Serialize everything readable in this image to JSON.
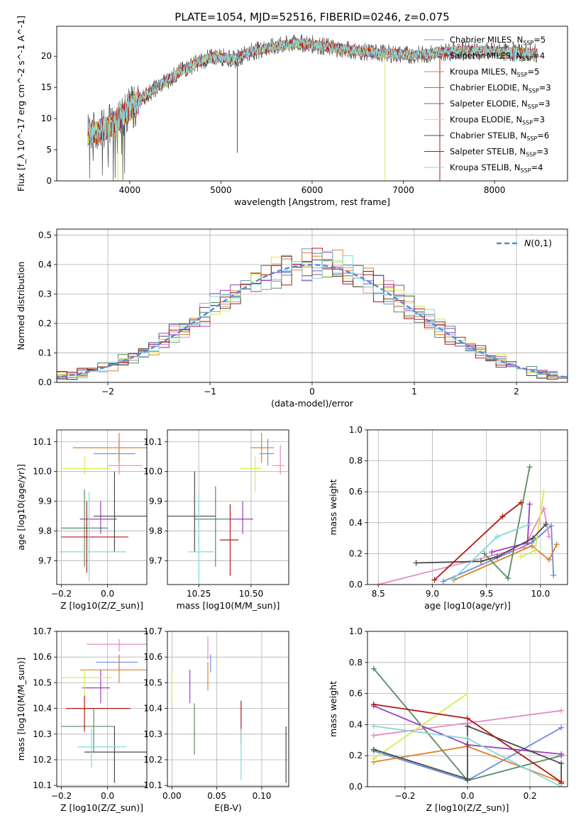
{
  "figure_title": "PLATE=1054, MJD=52516, FIBERID=0246, z=0.075",
  "colors": {
    "chabrier_miles": "#6a8fd8",
    "salpeter_miles": "#e48bc1",
    "kroupa_miles": "#e0802a",
    "chabrier_elodie": "#5a8a64",
    "salpeter_elodie": "#9b3fbf",
    "kroupa_elodie": "#d8ea52",
    "chabrier_stelib": "#4a4a4a",
    "salpeter_stelib": "#b01818",
    "kroupa_stelib": "#82d8dc",
    "normal_curve": "#5b8bd0"
  },
  "chart_data": [
    {
      "id": "spectrum",
      "type": "line",
      "title": "PLATE=1054, MJD=52516, FIBERID=0246, z=0.075",
      "xlabel": "wavelength [Angstrom, rest frame]",
      "ylabel": "Flux [f_λ 10^-17 erg cm^-2 s^-1 A^-1]",
      "xlim": [
        3200,
        8800
      ],
      "ylim": [
        0,
        24.8
      ],
      "xticks": [
        4000,
        5000,
        6000,
        7000,
        8000
      ],
      "yticks": [
        0,
        5,
        10,
        15,
        20
      ],
      "grid": false,
      "legend_position": "top-right",
      "x": [
        3550,
        3650,
        3750,
        3850,
        3950,
        4050,
        4150,
        4250,
        4350,
        4450,
        4550,
        4650,
        4750,
        4850,
        4950,
        5050,
        5150,
        5250,
        5350,
        5450,
        5550,
        5650,
        5750,
        5850,
        5950,
        6050,
        6150,
        6250,
        6350,
        6450,
        6550,
        6650,
        6750,
        6850,
        6950,
        7050,
        7150,
        7250,
        7350,
        7450,
        7550,
        7650,
        7750,
        7850,
        7950,
        8050,
        8150,
        8250,
        8350,
        8450
      ],
      "flux": [
        7.5,
        7.8,
        8.5,
        9.5,
        11.0,
        12.0,
        13.5,
        14.5,
        15.5,
        16.5,
        17.5,
        18.3,
        19.0,
        19.6,
        20.0,
        19.8,
        19.4,
        20.3,
        20.8,
        21.1,
        21.4,
        21.7,
        21.9,
        22.1,
        22.0,
        21.8,
        21.5,
        21.3,
        21.1,
        20.9,
        20.7,
        20.6,
        20.5,
        20.4,
        20.3,
        20.2,
        20.2,
        20.3,
        20.5,
        20.7,
        20.8,
        20.9,
        20.9,
        20.8,
        20.8,
        20.7,
        20.6,
        20.6,
        20.5,
        20.5
      ],
      "series": [
        {
          "name": "Chabrier MILES, N_SSP=5",
          "key": "chabrier_miles"
        },
        {
          "name": "Salpeter MILES, N_SSP=4",
          "key": "salpeter_miles"
        },
        {
          "name": "Kroupa MILES, N_SSP=5",
          "key": "kroupa_miles"
        },
        {
          "name": "Chabrier ELODIE, N_SSP=3",
          "key": "chabrier_elodie"
        },
        {
          "name": "Salpeter ELODIE, N_SSP=3",
          "key": "salpeter_elodie"
        },
        {
          "name": "Kroupa ELODIE, N_SSP=3",
          "key": "kroupa_elodie"
        },
        {
          "name": "Chabrier STELIB, N_SSP=6",
          "key": "chabrier_stelib"
        },
        {
          "name": "Salpeter STELIB, N_SSP=3",
          "key": "salpeter_stelib"
        },
        {
          "name": "Kroupa STELIB, N_SSP=4",
          "key": "kroupa_stelib"
        }
      ]
    },
    {
      "id": "residuals",
      "type": "histogram",
      "xlabel": "(data-model)/error",
      "ylabel": "Normed distribution",
      "xlim": [
        -2.5,
        2.5
      ],
      "ylim": [
        0,
        0.52
      ],
      "xticks": [
        -2,
        -1,
        0,
        1,
        2
      ],
      "yticks": [
        0.0,
        0.1,
        0.2,
        0.3,
        0.4,
        0.5
      ],
      "grid": true,
      "legend_position": "top-right",
      "legend": "N(0,1)",
      "bin_width": 0.1
    },
    {
      "id": "age_vs_Z",
      "type": "errorbar",
      "xlabel": "Z [log10(Z/Z_sun)]",
      "ylabel": "age [log10(age/yr)]",
      "xlim": [
        -0.22,
        0.17
      ],
      "ylim": [
        9.62,
        10.14
      ],
      "xticks": [
        -0.2,
        0.0
      ],
      "yticks": [
        9.7,
        9.8,
        9.9,
        10.0,
        10.1
      ],
      "grid": true,
      "points": [
        {
          "key": "chabrier_miles",
          "x": 0.05,
          "xerr": [
            0.11,
            0.07
          ],
          "y": 10.06,
          "yerr": [
            0.04,
            0.05
          ]
        },
        {
          "key": "salpeter_miles",
          "x": 0.05,
          "xerr": [
            0.05,
            0.1
          ],
          "y": 10.02,
          "yerr": [
            0.03,
            0.09
          ]
        },
        {
          "key": "kroupa_miles",
          "x": 0.05,
          "xerr": [
            0.2,
            0.13
          ],
          "y": 10.08,
          "yerr": [
            0.05,
            0.05
          ]
        },
        {
          "key": "chabrier_elodie",
          "x": -0.1,
          "xerr": [
            0.1,
            0.1
          ],
          "y": 9.81,
          "yerr": [
            0.13,
            0.13
          ]
        },
        {
          "key": "salpeter_elodie",
          "x": -0.03,
          "xerr": [
            0.09,
            0.07
          ],
          "y": 9.84,
          "yerr": [
            0.05,
            0.06
          ]
        },
        {
          "key": "kroupa_elodie",
          "x": -0.1,
          "xerr": [
            0.1,
            0.11
          ],
          "y": 10.01,
          "yerr": [
            0.02,
            0.04
          ]
        },
        {
          "key": "chabrier_stelib",
          "x": 0.03,
          "xerr": [
            0.09,
            0.15
          ],
          "y": 9.85,
          "yerr": [
            0.12,
            0.15
          ]
        },
        {
          "key": "salpeter_stelib",
          "x": -0.09,
          "xerr": [
            0.11,
            0.18
          ],
          "y": 9.78,
          "yerr": [
            0.12,
            0.12
          ]
        },
        {
          "key": "kroupa_stelib",
          "x": -0.08,
          "xerr": [
            0.13,
            0.16
          ],
          "y": 9.73,
          "yerr": [
            0.1,
            0.2
          ]
        }
      ]
    },
    {
      "id": "age_vs_mass",
      "type": "errorbar",
      "xlabel": "mass [log10(M/M_sun)]",
      "ylabel": "",
      "xlim": [
        10.1,
        10.68
      ],
      "ylim": [
        9.62,
        10.14
      ],
      "xticks": [
        10.25,
        10.5
      ],
      "yticks": [
        9.7,
        9.8,
        9.9,
        10.0,
        10.1
      ],
      "grid": true,
      "points": [
        {
          "key": "chabrier_miles",
          "x": 10.58,
          "xerr": [
            0.04,
            0.03
          ],
          "y": 10.06,
          "yerr": [
            0.04,
            0.05
          ]
        },
        {
          "key": "salpeter_miles",
          "x": 10.64,
          "xerr": [
            0.04,
            0.02
          ],
          "y": 10.02,
          "yerr": [
            0.03,
            0.07
          ]
        },
        {
          "key": "kroupa_miles",
          "x": 10.55,
          "xerr": [
            0.05,
            0.06
          ],
          "y": 10.08,
          "yerr": [
            0.05,
            0.05
          ]
        },
        {
          "key": "chabrier_elodie",
          "x": 10.33,
          "xerr": [
            0.1,
            0.07
          ],
          "y": 9.84,
          "yerr": [
            0.16,
            0.11
          ]
        },
        {
          "key": "salpeter_elodie",
          "x": 10.46,
          "xerr": [
            0.06,
            0.05
          ],
          "y": 9.84,
          "yerr": [
            0.05,
            0.06
          ]
        },
        {
          "key": "kroupa_elodie",
          "x": 10.52,
          "xerr": [
            0.07,
            0.03
          ],
          "y": 10.01,
          "yerr": [
            0.08,
            0.04
          ]
        },
        {
          "key": "chabrier_stelib",
          "x": 10.23,
          "xerr": [
            0.13,
            0.1
          ],
          "y": 9.85,
          "yerr": [
            0.12,
            0.15
          ]
        },
        {
          "key": "salpeter_stelib",
          "x": 10.4,
          "xerr": [
            0.05,
            0.04
          ],
          "y": 9.77,
          "yerr": [
            0.12,
            0.12
          ]
        },
        {
          "key": "kroupa_stelib",
          "x": 10.25,
          "xerr": [
            0.05,
            0.07
          ],
          "y": 9.73,
          "yerr": [
            0.1,
            0.2
          ]
        }
      ]
    },
    {
      "id": "mass_weight_vs_age",
      "type": "line",
      "xlabel": "age [log10(age/yr)]",
      "ylabel": "mass weight",
      "xlim": [
        8.4,
        10.25
      ],
      "ylim": [
        0,
        1
      ],
      "xticks": [
        8.5,
        9.0,
        9.5,
        10.0
      ],
      "yticks": [
        0.0,
        0.2,
        0.4,
        0.6,
        0.8,
        1.0
      ],
      "grid": true,
      "series": [
        {
          "key": "chabrier_miles",
          "x": [
            9.1,
            9.92,
            10.1,
            10.12
          ],
          "y": [
            0.02,
            0.27,
            0.38,
            0.06
          ]
        },
        {
          "key": "salpeter_miles",
          "x": [
            8.5,
            9.85,
            10.03,
            10.08
          ],
          "y": [
            0.0,
            0.24,
            0.49,
            0.31
          ]
        },
        {
          "key": "kroupa_miles",
          "x": [
            9.2,
            9.92,
            10.08,
            10.15
          ],
          "y": [
            0.03,
            0.25,
            0.16,
            0.26
          ]
        },
        {
          "key": "chabrier_elodie",
          "x": [
            9.48,
            9.7,
            9.9
          ],
          "y": [
            0.2,
            0.04,
            0.76
          ]
        },
        {
          "key": "salpeter_elodie",
          "x": [
            9.55,
            9.88,
            9.9
          ],
          "y": [
            0.21,
            0.27,
            0.52
          ]
        },
        {
          "key": "kroupa_elodie",
          "x": [
            9.82,
            9.95,
            10.03
          ],
          "y": [
            0.18,
            0.22,
            0.6
          ]
        },
        {
          "key": "chabrier_stelib",
          "x": [
            8.85,
            9.45,
            9.6,
            9.93,
            10.05
          ],
          "y": [
            0.14,
            0.15,
            0.18,
            0.3,
            0.39
          ]
        },
        {
          "key": "salpeter_stelib",
          "x": [
            9.02,
            9.65,
            9.82
          ],
          "y": [
            0.03,
            0.44,
            0.53
          ]
        },
        {
          "key": "kroupa_stelib",
          "x": [
            9.2,
            9.6,
            9.9
          ],
          "y": [
            0.04,
            0.31,
            0.39
          ]
        }
      ]
    },
    {
      "id": "mass_vs_Z",
      "type": "errorbar",
      "xlabel": "Z [log10(Z/Z_sun)]",
      "ylabel": "mass [log10(M/M_sun)]",
      "xlim": [
        -0.22,
        0.17
      ],
      "ylim": [
        10.095,
        10.7
      ],
      "xticks": [
        -0.2,
        0.0
      ],
      "yticks": [
        10.1,
        10.2,
        10.3,
        10.4,
        10.5,
        10.6,
        10.7
      ],
      "grid": true,
      "points": [
        {
          "key": "chabrier_miles",
          "x": 0.05,
          "xerr": [
            0.1,
            0.08
          ],
          "y": 10.58,
          "yerr": [
            0.04,
            0.03
          ]
        },
        {
          "key": "salpeter_miles",
          "x": 0.05,
          "xerr": [
            0.14,
            0.14
          ],
          "y": 10.65,
          "yerr": [
            0.03,
            0.02
          ]
        },
        {
          "key": "kroupa_miles",
          "x": 0.05,
          "xerr": [
            0.17,
            0.12
          ],
          "y": 10.55,
          "yerr": [
            0.05,
            0.06
          ]
        },
        {
          "key": "chabrier_elodie",
          "x": -0.06,
          "xerr": [
            0.14,
            0.09
          ],
          "y": 10.33,
          "yerr": [
            0.1,
            0.07
          ]
        },
        {
          "key": "salpeter_elodie",
          "x": -0.03,
          "xerr": [
            0.08,
            0.04
          ],
          "y": 10.48,
          "yerr": [
            0.06,
            0.07
          ]
        },
        {
          "key": "kroupa_elodie",
          "x": -0.1,
          "xerr": [
            0.1,
            0.12
          ],
          "y": 10.52,
          "yerr": [
            0.08,
            0.03
          ]
        },
        {
          "key": "chabrier_stelib",
          "x": 0.03,
          "xerr": [
            0.13,
            0.16
          ],
          "y": 10.23,
          "yerr": [
            0.12,
            0.1
          ]
        },
        {
          "key": "salpeter_stelib",
          "x": -0.1,
          "xerr": [
            0.08,
            0.2
          ],
          "y": 10.4,
          "yerr": [
            0.09,
            0.05
          ]
        },
        {
          "key": "kroupa_stelib",
          "x": -0.07,
          "xerr": [
            0.06,
            0.15
          ],
          "y": 10.25,
          "yerr": [
            0.08,
            0.07
          ]
        }
      ]
    },
    {
      "id": "mass_vs_EBV",
      "type": "errorbar",
      "xlabel": "E(B-V)",
      "ylabel": "",
      "xlim": [
        -0.005,
        0.13
      ],
      "ylim": [
        10.095,
        10.7
      ],
      "xticks": [
        0.0,
        0.05,
        0.1
      ],
      "yticks": [
        10.1,
        10.2,
        10.3,
        10.4,
        10.5,
        10.6,
        10.7
      ],
      "grid": true,
      "points": [
        {
          "key": "chabrier_miles",
          "x": 0.043,
          "y": 10.58,
          "yerr": [
            0.04,
            0.03
          ]
        },
        {
          "key": "salpeter_miles",
          "x": 0.04,
          "y": 10.62,
          "yerr": [
            0.03,
            0.06
          ]
        },
        {
          "key": "kroupa_miles",
          "x": 0.04,
          "y": 10.52,
          "yerr": [
            0.05,
            0.06
          ]
        },
        {
          "key": "chabrier_elodie",
          "x": 0.025,
          "y": 10.32,
          "yerr": [
            0.1,
            0.1
          ]
        },
        {
          "key": "salpeter_elodie",
          "x": 0.02,
          "y": 10.48,
          "yerr": [
            0.06,
            0.07
          ]
        },
        {
          "key": "kroupa_elodie",
          "x": 0.0,
          "y": 10.49,
          "yerr": [
            0.06,
            0.06
          ]
        },
        {
          "key": "chabrier_stelib",
          "x": 0.127,
          "y": 10.22,
          "yerr": [
            0.11,
            0.11
          ]
        },
        {
          "key": "salpeter_stelib",
          "x": 0.077,
          "y": 10.35,
          "yerr": [
            0.09,
            0.08
          ]
        },
        {
          "key": "kroupa_stelib",
          "x": 0.077,
          "y": 10.22,
          "yerr": [
            0.1,
            0.1
          ]
        }
      ]
    },
    {
      "id": "mass_weight_vs_Z",
      "type": "line",
      "xlabel": "Z [log10(Z/Z_sun)]",
      "ylabel": "mass weight",
      "xlim": [
        -0.32,
        0.32
      ],
      "ylim": [
        0,
        1
      ],
      "xticks": [
        -0.2,
        0.0,
        0.2
      ],
      "yticks": [
        0.0,
        0.2,
        0.4,
        0.6,
        0.8,
        1.0
      ],
      "grid": true,
      "series": [
        {
          "key": "chabrier_miles",
          "x": [
            -0.3,
            0.0,
            0.3
          ],
          "y": [
            0.23,
            0.04,
            0.38
          ]
        },
        {
          "key": "salpeter_miles",
          "x": [
            -0.3,
            0.0,
            0.3
          ],
          "y": [
            0.33,
            0.41,
            0.49
          ]
        },
        {
          "key": "kroupa_miles",
          "x": [
            -0.3,
            0.0,
            0.3
          ],
          "y": [
            0.16,
            0.26,
            0.03
          ]
        },
        {
          "key": "chabrier_elodie",
          "x": [
            -0.3,
            0.0,
            0.3
          ],
          "y": [
            0.76,
            0.04,
            0.2
          ]
        },
        {
          "key": "salpeter_elodie",
          "x": [
            -0.3,
            0.0,
            0.3
          ],
          "y": [
            0.52,
            0.27,
            0.21
          ]
        },
        {
          "key": "kroupa_elodie",
          "x": [
            -0.3,
            0.0
          ],
          "y": [
            0.18,
            0.6
          ]
        },
        {
          "key": "chabrier_stelib",
          "x": [
            -0.3,
            0.0,
            0.0,
            0.3,
            0.3
          ],
          "y": [
            0.24,
            0.05,
            0.39,
            0.15,
            0.02
          ]
        },
        {
          "key": "salpeter_stelib",
          "x": [
            -0.3,
            0.0,
            0.3
          ],
          "y": [
            0.53,
            0.44,
            0.03
          ]
        },
        {
          "key": "kroupa_stelib",
          "x": [
            -0.3,
            0.0,
            0.3
          ],
          "y": [
            0.39,
            0.31,
            0.0
          ]
        }
      ]
    }
  ]
}
